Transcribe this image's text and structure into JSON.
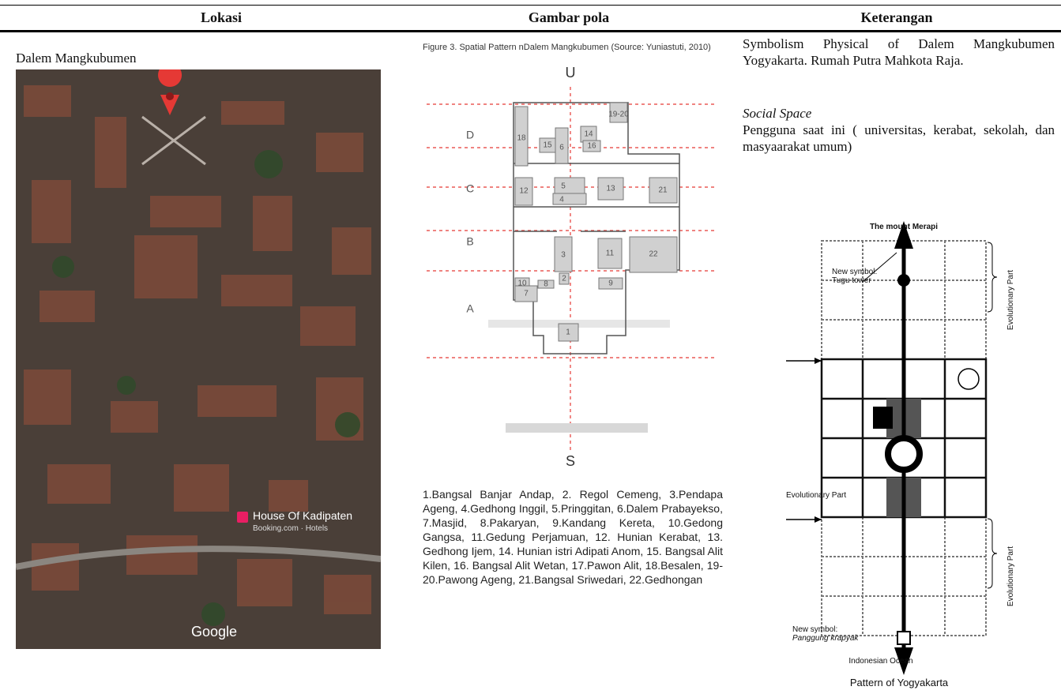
{
  "table": {
    "headers": [
      "Lokasi",
      "Gambar pola",
      "Keterangan"
    ],
    "location": {
      "name": "Dalem Mangkubumen",
      "map": {
        "place_label": "House Of Kadipaten",
        "place_sublabel": "Booking.com · Hotels",
        "attribution": "Google"
      }
    },
    "pattern": {
      "caption": "Figure  3. Spatial Pattern nDalem Mangkubumen (Source: Yuniastuti, 2010)",
      "north": "U",
      "south": "S",
      "zones": [
        "D",
        "C",
        "B",
        "A"
      ],
      "rooms": [
        "19-20",
        "18",
        "15",
        "6",
        "14",
        "16",
        "12",
        "5",
        "4",
        "13",
        "21",
        "3",
        "11",
        "22",
        "10",
        "2",
        "8",
        "9",
        "7",
        "1"
      ],
      "legend": "1.Bangsal Banjar Andap, 2. Regol Cemeng, 3.Pendapa Ageng, 4.Gedhong Inggil, 5.Pringgitan, 6.Dalem Prabayekso, 7.Masjid, 8.Pakaryan, 9.Kandang Kereta, 10.Gedong Gangsa, 11.Gedung Perjamuan, 12. Hunian Kerabat, 13. Gedhong Ijem, 14. Hunian istri Adipati Anom, 15. Bangsal Alit Kilen, 16. Bangsal Alit Wetan, 17.Pawon Alit, 18.Besalen, 19-20.Pawong Ageng, 21.Bangsal Sriwedari, 22.Gedhongan"
    },
    "description": {
      "text": "Symbolism Physical of Dalem Mangkubumen Yogyakarta. Rumah Putra Mahkota Raja.",
      "subheading": "Social Space",
      "body": "Pengguna saat ini ( universitas, kerabat, sekolah, dan masyaarakat umum)",
      "diagram": {
        "top": "The mount Merapi",
        "tugu_label": "New symbol:",
        "tugu_name": "Tugu tower",
        "evolutionary_top": "Evolutionary Part",
        "evolutionary_left": "Evolutionary Part",
        "evolutionary_bottom": "Evolutionary Part",
        "krapyak_label": "New symbol:",
        "krapyak_name": "Panggung krapyak",
        "bottom": "Indonesian Ocean",
        "title": "Pattern of Yogyakarta"
      }
    }
  }
}
